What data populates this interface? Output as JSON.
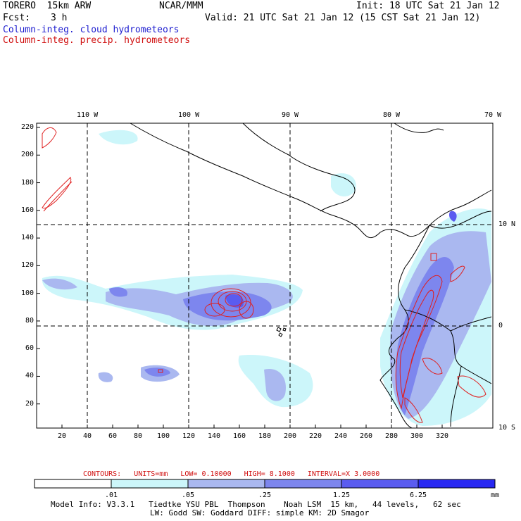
{
  "header": {
    "model": "TORERO  15km ARW",
    "center": "NCAR/MMM",
    "init": "Init: 18 UTC Sat 21 Jan 12",
    "fcst_label": "Fcst:",
    "fcst_value": "3 h",
    "valid": "Valid: 21 UTC Sat 21 Jan 12 (15 CST Sat 21 Jan 12)"
  },
  "legend": {
    "cloud": "Column-integ. cloud hydrometeors",
    "precip": "Column-integ. precip. hydrometeors"
  },
  "colors": {
    "cloud_levels": [
      "#ffffff",
      "#ccf6fa",
      "#aab8f0",
      "#7d86ee",
      "#5a5cf0",
      "#2828f2"
    ],
    "precip_contour": "#e02020",
    "coast": "#000000"
  },
  "map": {
    "lon_labels": [
      "110 W",
      "100 W",
      "90 W",
      "80 W",
      "70 W"
    ],
    "lat_labels": [
      "10 N",
      "0",
      "10 S"
    ],
    "y_ticks": [
      "20",
      "40",
      "60",
      "80",
      "100",
      "120",
      "140",
      "160",
      "180",
      "200",
      "220"
    ],
    "x_ticks": [
      "20",
      "40",
      "60",
      "80",
      "100",
      "120",
      "140",
      "160",
      "180",
      "200",
      "220",
      "240",
      "260",
      "280",
      "300",
      "320"
    ]
  },
  "contours": {
    "label": "CONTOURS:",
    "units": "UNITS=mm",
    "low": "LOW= 0.10000",
    "high": "HIGH= 8.1000",
    "interval": "INTERVAL=X 3.0000"
  },
  "colorbar": {
    "levels": [
      ".01",
      ".05",
      ".25",
      "1.25",
      "6.25"
    ],
    "unit": "mm"
  },
  "footer": {
    "line1": "Model Info: V3.3.1   Tiedtke YSU PBL  Thompson    Noah LSM  15 km,   44 levels,   62 sec",
    "line2": "LW: Godd SW: Goddard DIFF: simple KM: 2D Smagor"
  }
}
